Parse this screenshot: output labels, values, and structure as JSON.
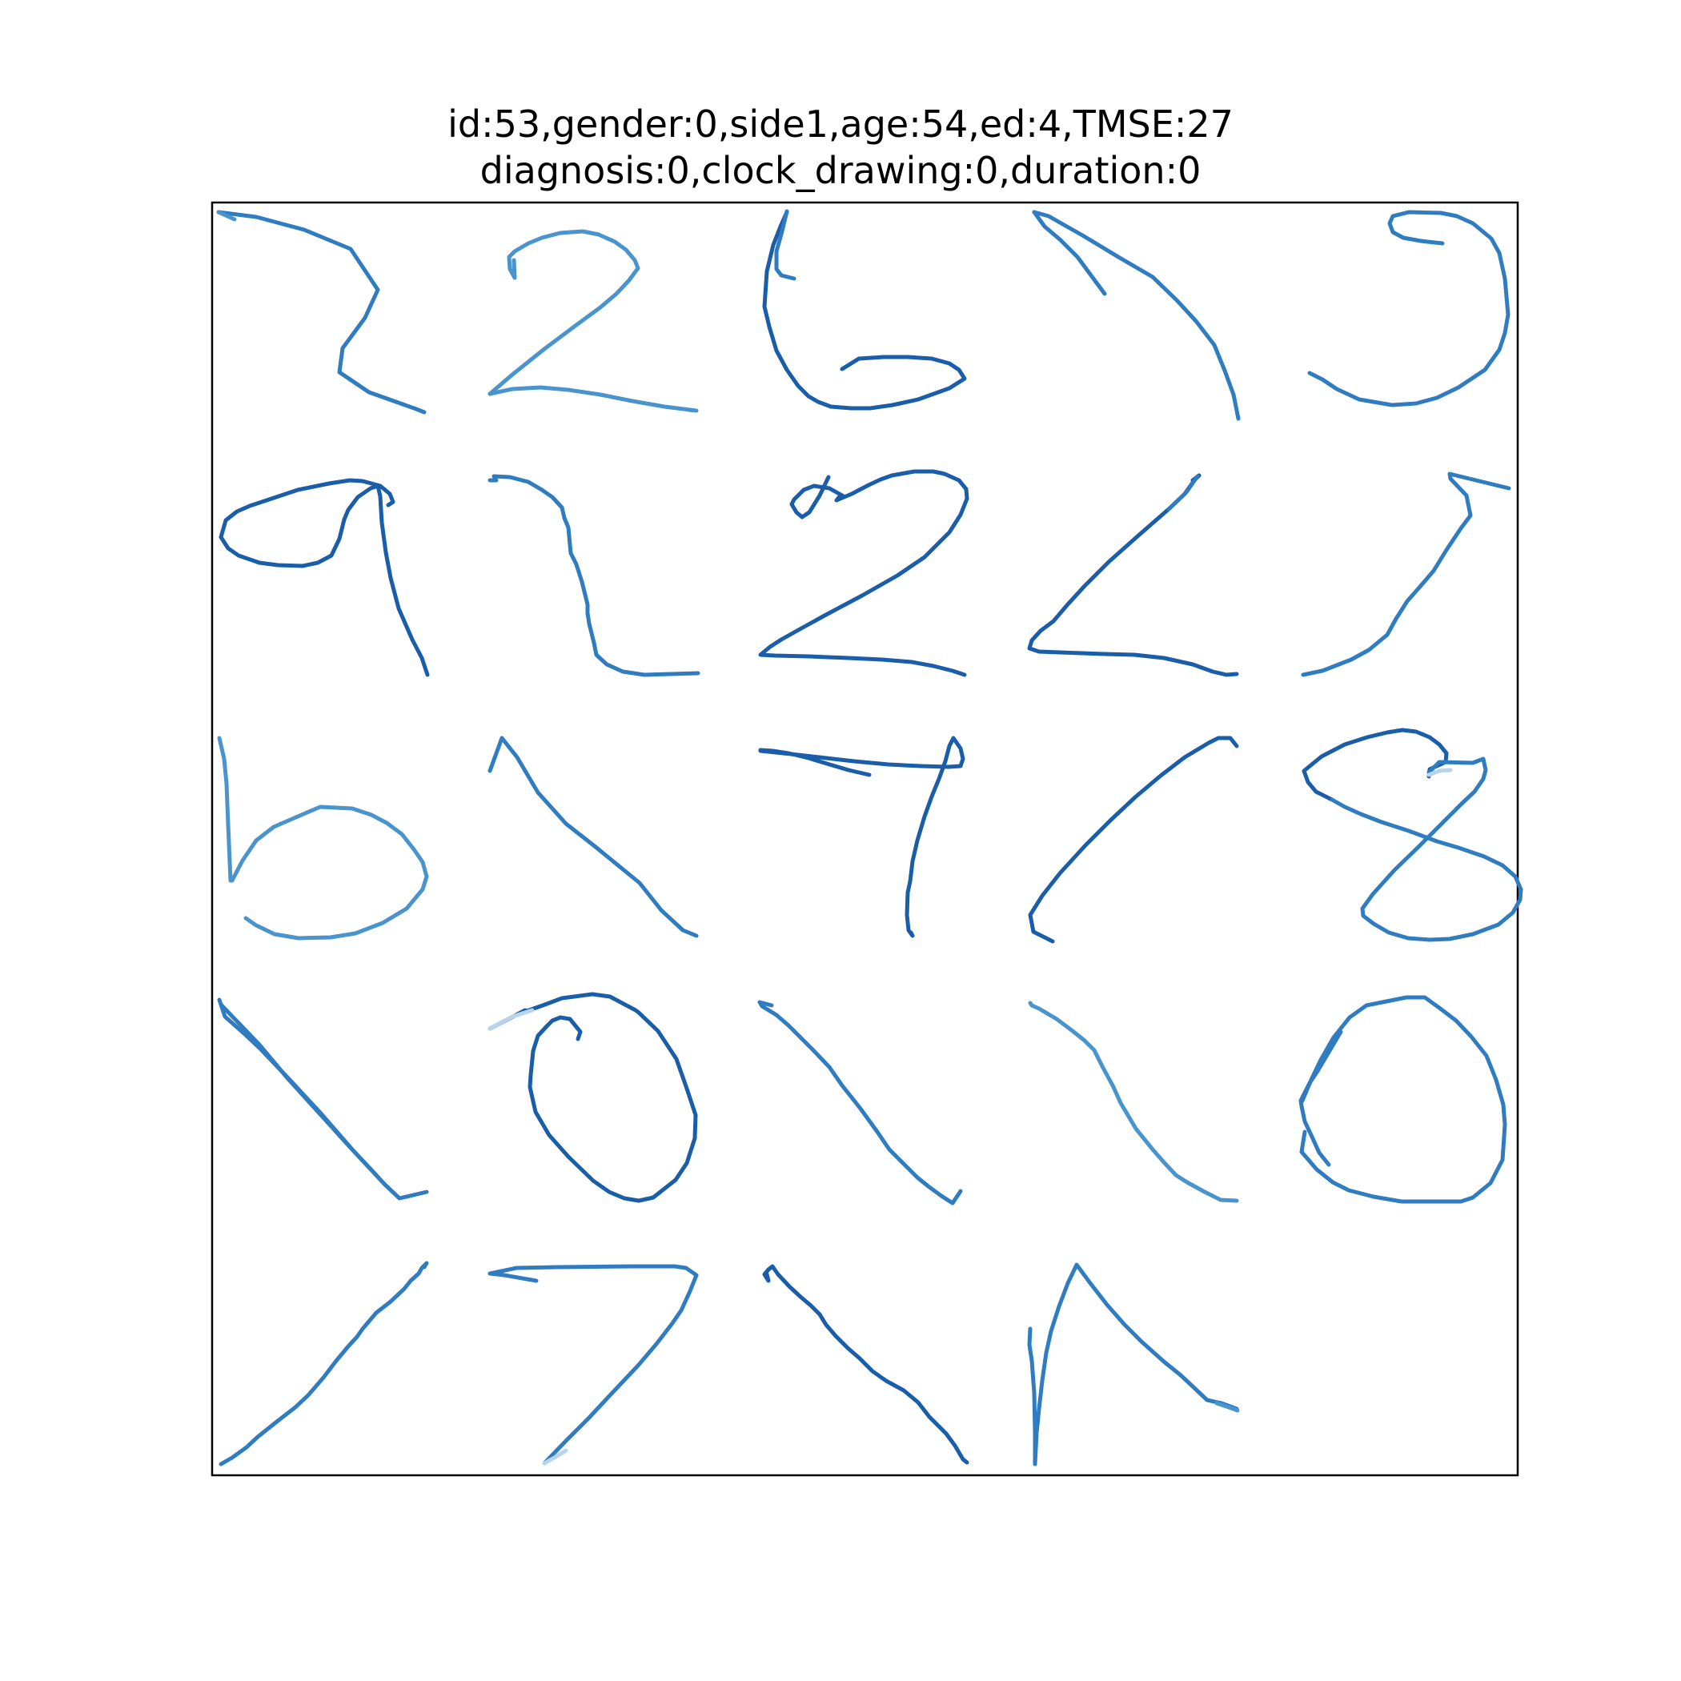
{
  "figure": {
    "title_line1": "id:53,gender:0,side1,age:54,ed:4,TMSE:27",
    "title_line2": "diagnosis:0,clock_drawing:0,duration:0"
  },
  "colors": {
    "frame": "#000000",
    "stroke_dark": "#1a5da8",
    "stroke_mid": "#2f7dc0",
    "stroke_light": "#4a94cd",
    "stroke_fade": "#b9d4ea"
  },
  "grid": {
    "rows": 5,
    "cols": 5,
    "filled_cells": 24
  }
}
